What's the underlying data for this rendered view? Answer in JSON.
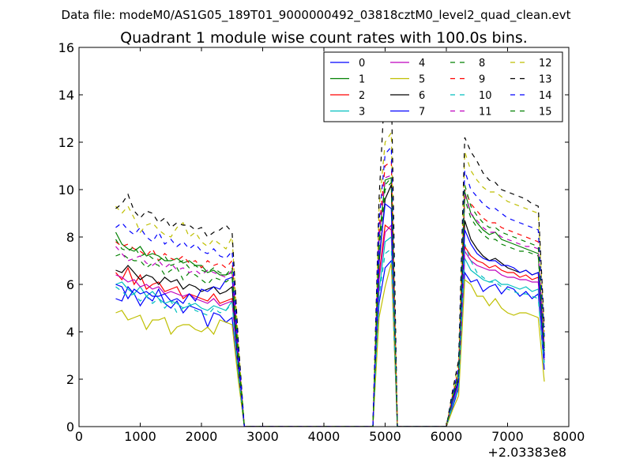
{
  "chart_data": {
    "type": "line",
    "suptitle": "Data file: modeM0/AS1G05_189T01_9000000492_03818cztM0_level2_quad_clean.evt",
    "title": "Quadrant 1 module wise count rates with 100.0s bins.",
    "xlabel": "",
    "ylabel": "",
    "x_offset_label": "+2.03383e8",
    "xlim": [
      0,
      8000
    ],
    "ylim": [
      0,
      16
    ],
    "xticks": [
      0,
      1000,
      2000,
      3000,
      4000,
      5000,
      6000,
      7000,
      8000
    ],
    "yticks": [
      0,
      2,
      4,
      6,
      8,
      10,
      12,
      14,
      16
    ],
    "grid": false,
    "legend": {
      "placement": "top-right",
      "columns": 4
    },
    "x": [
      600,
      700,
      800,
      900,
      1000,
      1100,
      1200,
      1300,
      1400,
      1500,
      1600,
      1700,
      1800,
      1900,
      2000,
      2100,
      2200,
      2300,
      2400,
      2500,
      2600,
      2700,
      2800,
      2900,
      3000,
      3100,
      3200,
      3300,
      3400,
      3500,
      3600,
      3700,
      3800,
      3900,
      4000,
      4100,
      4200,
      4300,
      4400,
      4500,
      4600,
      4700,
      4800,
      4900,
      5000,
      5100,
      5200,
      5300,
      5400,
      5500,
      5600,
      5700,
      5800,
      5900,
      6000,
      6100,
      6200,
      6300,
      6400,
      6500,
      6600,
      6700,
      6800,
      6900,
      7000,
      7100,
      7200,
      7300,
      7400,
      7500,
      7600
    ],
    "series": [
      {
        "name": "0",
        "color": "#0000ff",
        "dash": "solid",
        "values": [
          5.4,
          5.3,
          5.9,
          5.6,
          5.1,
          5.5,
          5.3,
          5.8,
          5.2,
          5.0,
          5.3,
          4.8,
          5.1,
          5.0,
          4.9,
          4.2,
          4.8,
          4.7,
          4.4,
          4.6,
          2.1,
          0,
          0,
          0,
          0,
          0,
          0,
          0,
          0,
          0,
          0,
          0,
          0,
          0,
          0,
          0,
          0,
          0,
          0,
          0,
          0,
          0,
          0,
          5.2,
          6.7,
          7.0,
          0,
          0,
          0,
          0,
          0,
          0,
          0,
          0,
          0,
          0.8,
          1.6,
          6.5,
          6.1,
          6.2,
          5.7,
          5.9,
          6.0,
          5.6,
          5.9,
          5.8,
          5.5,
          5.7,
          5.4,
          5.6,
          2.4
        ]
      },
      {
        "name": "1",
        "color": "#008000",
        "dash": "solid",
        "values": [
          8.2,
          7.7,
          7.5,
          7.4,
          7.6,
          7.2,
          7.3,
          7.2,
          7.0,
          7.0,
          7.1,
          6.9,
          7.0,
          6.8,
          6.8,
          6.5,
          6.6,
          6.4,
          6.4,
          6.5,
          3.0,
          0,
          0,
          0,
          0,
          0,
          0,
          0,
          0,
          0,
          0,
          0,
          0,
          0,
          0,
          0,
          0,
          0,
          0,
          0,
          0,
          0,
          0,
          7.8,
          10.4,
          10.5,
          0,
          0,
          0,
          0,
          0,
          0,
          0,
          0,
          0,
          1.2,
          2.3,
          9.9,
          9.0,
          8.6,
          8.3,
          8.1,
          8.2,
          7.9,
          7.8,
          7.7,
          7.6,
          7.5,
          7.4,
          7.3,
          3.3
        ]
      },
      {
        "name": "2",
        "color": "#ff0000",
        "dash": "solid",
        "values": [
          6.5,
          6.2,
          6.7,
          6.0,
          6.4,
          5.8,
          6.0,
          6.1,
          5.7,
          5.8,
          5.9,
          5.4,
          5.6,
          5.5,
          5.4,
          5.3,
          5.6,
          5.2,
          5.3,
          5.4,
          2.5,
          0,
          0,
          0,
          0,
          0,
          0,
          0,
          0,
          0,
          0,
          0,
          0,
          0,
          0,
          0,
          0,
          0,
          0,
          0,
          0,
          0,
          0,
          6.4,
          8.5,
          8.3,
          0,
          0,
          0,
          0,
          0,
          0,
          0,
          0,
          0,
          1.0,
          1.9,
          7.6,
          7.2,
          7.0,
          6.9,
          6.7,
          6.8,
          6.6,
          6.5,
          6.5,
          6.3,
          6.4,
          6.2,
          6.3,
          2.9
        ]
      },
      {
        "name": "3",
        "color": "#00bfbf",
        "dash": "solid",
        "values": [
          6.0,
          6.1,
          5.8,
          5.6,
          5.9,
          5.5,
          5.7,
          5.4,
          5.2,
          5.3,
          5.2,
          5.0,
          5.1,
          5.2,
          5.0,
          4.9,
          5.1,
          5.0,
          4.9,
          5.3,
          2.4,
          0,
          0,
          0,
          0,
          0,
          0,
          0,
          0,
          0,
          0,
          0,
          0,
          0,
          0,
          0,
          0,
          0,
          0,
          0,
          0,
          0,
          0,
          5.7,
          7.8,
          8.0,
          0,
          0,
          0,
          0,
          0,
          0,
          0,
          0,
          0,
          0.9,
          1.7,
          7.1,
          6.6,
          6.4,
          6.2,
          6.1,
          6.2,
          6.0,
          6.0,
          5.9,
          5.8,
          5.9,
          5.7,
          5.8,
          2.7
        ]
      },
      {
        "name": "4",
        "color": "#bf00bf",
        "dash": "solid",
        "values": [
          6.4,
          6.3,
          6.1,
          6.2,
          5.9,
          6.0,
          5.8,
          5.9,
          5.6,
          5.7,
          5.6,
          5.5,
          5.6,
          5.4,
          5.3,
          5.2,
          5.4,
          5.1,
          5.2,
          5.3,
          2.5,
          0,
          0,
          0,
          0,
          0,
          0,
          0,
          0,
          0,
          0,
          0,
          0,
          0,
          0,
          0,
          0,
          0,
          0,
          0,
          0,
          0,
          0,
          6.2,
          8.2,
          8.5,
          0,
          0,
          0,
          0,
          0,
          0,
          0,
          0,
          0,
          1.0,
          1.8,
          7.4,
          7.0,
          6.8,
          6.7,
          6.6,
          6.6,
          6.4,
          6.3,
          6.3,
          6.2,
          6.2,
          6.1,
          6.1,
          2.8
        ]
      },
      {
        "name": "5",
        "color": "#bfbf00",
        "dash": "solid",
        "values": [
          4.8,
          4.9,
          4.5,
          4.6,
          4.7,
          4.1,
          4.5,
          4.5,
          4.6,
          3.9,
          4.2,
          4.3,
          4.3,
          4.1,
          4.0,
          4.2,
          3.9,
          4.5,
          4.4,
          4.3,
          2.0,
          0,
          0,
          0,
          0,
          0,
          0,
          0,
          0,
          0,
          0,
          0,
          0,
          0,
          0,
          0,
          0,
          0,
          0,
          0,
          0,
          0,
          0,
          4.6,
          5.9,
          6.9,
          0,
          0,
          0,
          0,
          0,
          0,
          0,
          0,
          0,
          0.7,
          1.3,
          6.2,
          6.0,
          5.5,
          5.5,
          5.1,
          5.4,
          5.0,
          4.8,
          4.7,
          4.8,
          4.8,
          4.7,
          4.6,
          1.9
        ]
      },
      {
        "name": "6",
        "color": "#000000",
        "dash": "solid",
        "values": [
          6.6,
          6.5,
          6.8,
          6.5,
          6.2,
          6.4,
          6.3,
          6.0,
          6.3,
          6.1,
          6.2,
          5.8,
          6.0,
          5.9,
          5.7,
          5.8,
          5.9,
          5.6,
          5.7,
          5.9,
          2.6,
          0,
          0,
          0,
          0,
          0,
          0,
          0,
          0,
          0,
          0,
          0,
          0,
          0,
          0,
          0,
          0,
          0,
          0,
          0,
          0,
          0,
          0,
          6.9,
          9.6,
          10.2,
          0,
          0,
          0,
          0,
          0,
          0,
          0,
          0,
          0,
          1.1,
          2.0,
          8.7,
          7.9,
          7.5,
          7.2,
          7.0,
          7.1,
          6.9,
          6.7,
          6.6,
          6.5,
          6.6,
          6.4,
          6.5,
          3.0
        ]
      },
      {
        "name": "7",
        "color": "#0000ff",
        "dash": "solid",
        "values": [
          6.0,
          5.9,
          5.4,
          5.8,
          5.6,
          5.7,
          5.5,
          5.5,
          5.6,
          5.3,
          5.4,
          5.2,
          5.6,
          5.3,
          5.8,
          5.7,
          5.9,
          5.8,
          6.2,
          6.3,
          2.8,
          0,
          0,
          0,
          0,
          0,
          0,
          0,
          0,
          0,
          0,
          0,
          0,
          0,
          0,
          0,
          0,
          0,
          0,
          0,
          0,
          0,
          0,
          7.1,
          9.4,
          9.2,
          0,
          0,
          0,
          0,
          0,
          0,
          0,
          0,
          0,
          1.1,
          1.9,
          8.3,
          7.7,
          7.3,
          7.1,
          7.0,
          7.0,
          6.8,
          6.8,
          6.7,
          6.5,
          6.6,
          6.4,
          6.5,
          2.9
        ]
      },
      {
        "name": "8",
        "color": "#008000",
        "dash": "dashed",
        "values": [
          7.2,
          7.3,
          7.1,
          7.0,
          7.0,
          6.7,
          6.9,
          6.8,
          6.4,
          6.6,
          6.7,
          6.2,
          6.5,
          6.4,
          6.2,
          6.0,
          6.3,
          6.2,
          6.1,
          6.3,
          2.9,
          0,
          0,
          0,
          0,
          0,
          0,
          0,
          0,
          0,
          0,
          0,
          0,
          0,
          0,
          0,
          0,
          0,
          0,
          0,
          0,
          0,
          0,
          7.5,
          10.0,
          10.3,
          0,
          0,
          0,
          0,
          0,
          0,
          0,
          0,
          0,
          1.2,
          2.2,
          9.6,
          8.8,
          8.4,
          8.1,
          7.9,
          7.9,
          7.7,
          7.6,
          7.5,
          7.4,
          7.4,
          7.3,
          7.2,
          3.2
        ]
      },
      {
        "name": "9",
        "color": "#ff0000",
        "dash": "dashed",
        "values": [
          7.8,
          7.6,
          7.7,
          7.5,
          7.4,
          7.2,
          7.5,
          7.0,
          7.3,
          7.1,
          7.0,
          7.2,
          6.9,
          7.0,
          6.7,
          7.0,
          6.8,
          6.9,
          6.7,
          7.0,
          3.2,
          0,
          0,
          0,
          0,
          0,
          0,
          0,
          0,
          0,
          0,
          0,
          0,
          0,
          0,
          0,
          0,
          0,
          0,
          0,
          0,
          0,
          0,
          8.3,
          11.0,
          11.2,
          0,
          0,
          0,
          0,
          0,
          0,
          0,
          0,
          0,
          1.3,
          2.4,
          10.0,
          9.4,
          9.1,
          8.8,
          8.6,
          8.6,
          8.4,
          8.3,
          8.2,
          8.1,
          8.0,
          7.9,
          7.8,
          3.6
        ]
      },
      {
        "name": "10",
        "color": "#00bfbf",
        "dash": "dashed",
        "values": [
          5.9,
          5.7,
          5.5,
          5.6,
          5.3,
          5.5,
          5.2,
          5.4,
          5.0,
          5.3,
          4.8,
          5.0,
          5.2,
          4.9,
          4.8,
          4.7,
          5.0,
          4.8,
          4.9,
          5.2,
          2.3,
          0,
          0,
          0,
          0,
          0,
          0,
          0,
          0,
          0,
          0,
          0,
          0,
          0,
          0,
          0,
          0,
          0,
          0,
          0,
          0,
          0,
          0,
          5.5,
          7.3,
          7.5,
          0,
          0,
          0,
          0,
          0,
          0,
          0,
          0,
          0,
          0.9,
          1.6,
          7.7,
          7.0,
          6.5,
          6.3,
          6.1,
          6.1,
          5.9,
          5.8,
          5.7,
          5.6,
          5.6,
          5.5,
          5.4,
          2.5
        ]
      },
      {
        "name": "11",
        "color": "#bf00bf",
        "dash": "dashed",
        "values": [
          7.6,
          7.3,
          7.0,
          7.1,
          7.2,
          6.9,
          6.8,
          7.0,
          6.7,
          6.9,
          6.6,
          6.7,
          6.5,
          6.6,
          6.4,
          6.6,
          6.5,
          6.4,
          6.3,
          6.6,
          3.0,
          0,
          0,
          0,
          0,
          0,
          0,
          0,
          0,
          0,
          0,
          0,
          0,
          0,
          0,
          0,
          0,
          0,
          0,
          0,
          0,
          0,
          0,
          7.9,
          10.5,
          10.6,
          0,
          0,
          0,
          0,
          0,
          0,
          0,
          0,
          0,
          1.2,
          2.3,
          9.8,
          9.0,
          8.7,
          8.4,
          8.2,
          8.2,
          8.0,
          7.9,
          7.8,
          7.7,
          7.6,
          7.6,
          7.5,
          3.4
        ]
      },
      {
        "name": "12",
        "color": "#bfbf00",
        "dash": "dashed",
        "values": [
          9.3,
          9.0,
          9.3,
          8.8,
          8.2,
          8.5,
          8.6,
          8.3,
          8.1,
          8.0,
          8.4,
          8.6,
          8.0,
          8.2,
          7.8,
          7.6,
          7.9,
          7.7,
          7.5,
          8.0,
          3.6,
          0,
          0,
          0,
          0,
          0,
          0,
          0,
          0,
          0,
          0,
          0,
          0,
          0,
          0,
          0,
          0,
          0,
          0,
          0,
          0,
          0,
          0,
          9.2,
          12.0,
          12.4,
          0,
          0,
          0,
          0,
          0,
          0,
          0,
          0,
          0,
          1.4,
          2.7,
          11.6,
          10.8,
          10.4,
          10.1,
          9.9,
          9.9,
          9.7,
          9.5,
          9.4,
          9.3,
          9.2,
          9.1,
          9.0,
          4.0
        ]
      },
      {
        "name": "13",
        "color": "#000000",
        "dash": "dashed",
        "values": [
          9.2,
          9.4,
          9.8,
          9.1,
          8.8,
          9.1,
          9.0,
          8.6,
          8.8,
          8.4,
          8.6,
          8.5,
          8.5,
          8.3,
          8.4,
          8.0,
          8.2,
          8.3,
          8.5,
          8.2,
          3.7,
          0,
          0,
          0,
          0,
          0,
          0,
          0,
          0,
          0,
          0,
          0,
          0,
          0,
          0,
          0,
          0,
          0,
          0,
          0,
          0,
          0,
          0,
          9.6,
          14.6,
          14.4,
          0,
          0,
          0,
          0,
          0,
          0,
          0,
          0,
          0,
          1.5,
          2.8,
          12.2,
          11.6,
          11.2,
          10.7,
          10.4,
          10.3,
          10.0,
          9.9,
          9.8,
          9.7,
          9.6,
          9.4,
          9.3,
          4.2
        ]
      },
      {
        "name": "14",
        "color": "#0000ff",
        "dash": "dashed",
        "values": [
          8.4,
          8.6,
          8.3,
          8.1,
          8.4,
          8.0,
          7.8,
          8.2,
          7.7,
          7.9,
          7.6,
          7.8,
          7.5,
          7.7,
          7.4,
          7.3,
          7.5,
          7.2,
          7.1,
          7.4,
          3.3,
          0,
          0,
          0,
          0,
          0,
          0,
          0,
          0,
          0,
          0,
          0,
          0,
          0,
          0,
          0,
          0,
          0,
          0,
          0,
          0,
          0,
          0,
          8.6,
          11.5,
          11.8,
          0,
          0,
          0,
          0,
          0,
          0,
          0,
          0,
          0,
          1.3,
          2.5,
          10.8,
          10.0,
          9.7,
          9.4,
          9.2,
          9.2,
          9.0,
          8.8,
          8.7,
          8.6,
          8.5,
          8.4,
          8.3,
          3.8
        ]
      },
      {
        "name": "15",
        "color": "#008000",
        "dash": "dashed",
        "values": [
          7.9,
          7.5,
          7.4,
          7.6,
          7.2,
          7.3,
          7.1,
          7.0,
          7.2,
          6.8,
          6.9,
          7.0,
          6.7,
          6.8,
          6.6,
          6.5,
          6.7,
          6.5,
          6.4,
          6.7,
          3.1,
          0,
          0,
          0,
          0,
          0,
          0,
          0,
          0,
          0,
          0,
          0,
          0,
          0,
          0,
          0,
          0,
          0,
          0,
          0,
          0,
          0,
          0,
          7.7,
          10.2,
          10.5,
          0,
          0,
          0,
          0,
          0,
          0,
          0,
          0,
          0,
          1.2,
          2.2,
          10.2,
          9.3,
          8.9,
          8.6,
          8.4,
          8.4,
          8.2,
          8.1,
          8.0,
          7.9,
          7.8,
          7.7,
          7.6,
          3.4
        ]
      }
    ]
  }
}
